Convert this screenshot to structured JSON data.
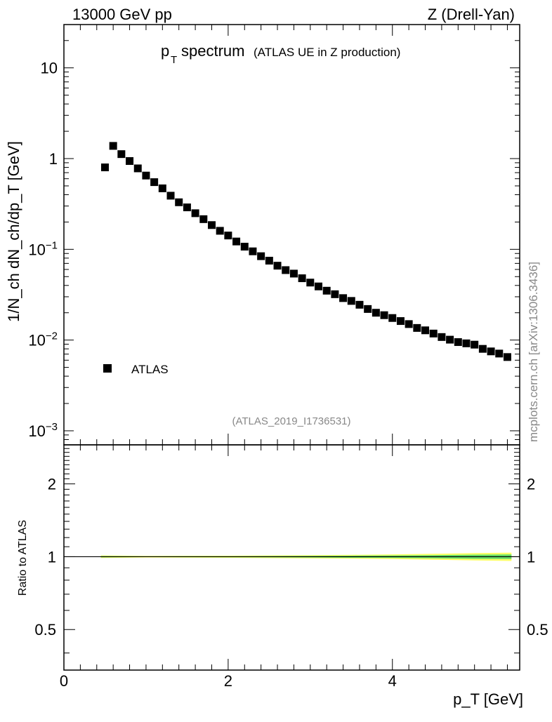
{
  "header": {
    "energy": "13000 GeV pp",
    "process": "Z (Drell-Yan)"
  },
  "title": {
    "main_p": "p",
    "main_sub": "T",
    "main_rest": "spectrum",
    "sub": "(ATLAS UE in Z production)"
  },
  "ylabel_top": "1/N_ch dN_ch/dp_T [GeV]",
  "ylabel_bottom": "Ratio to ATLAS",
  "xlabel": "p_T [GeV]",
  "side_text": "mcplots.cern.ch [arXiv:1306.3436]",
  "analysis_id": "(ATLAS_2019_I1736531)",
  "legend": {
    "label": "ATLAS"
  },
  "colors": {
    "data": "#000000",
    "band_outer": "#ffff66",
    "band_inner": "#66dd66"
  },
  "chart_data": [
    {
      "type": "scatter",
      "panel": "main",
      "series": [
        {
          "name": "ATLAS",
          "x": [
            0.5,
            0.6,
            0.7,
            0.8,
            0.9,
            1.0,
            1.1,
            1.2,
            1.3,
            1.4,
            1.5,
            1.6,
            1.7,
            1.8,
            1.9,
            2.0,
            2.1,
            2.2,
            2.3,
            2.4,
            2.5,
            2.6,
            2.7,
            2.8,
            2.9,
            3.0,
            3.1,
            3.2,
            3.3,
            3.4,
            3.5,
            3.6,
            3.7,
            3.8,
            3.9,
            4.0,
            4.1,
            4.2,
            4.3,
            4.4,
            4.5,
            4.6,
            4.7,
            4.8,
            4.9,
            5.0,
            5.1,
            5.2,
            5.3,
            5.4
          ],
          "values": [
            0.8,
            1.38,
            1.12,
            0.94,
            0.78,
            0.65,
            0.55,
            0.47,
            0.39,
            0.33,
            0.29,
            0.25,
            0.215,
            0.185,
            0.16,
            0.142,
            0.122,
            0.107,
            0.095,
            0.084,
            0.075,
            0.066,
            0.059,
            0.054,
            0.048,
            0.043,
            0.039,
            0.035,
            0.032,
            0.029,
            0.027,
            0.0245,
            0.022,
            0.02,
            0.0188,
            0.0175,
            0.0162,
            0.015,
            0.0136,
            0.0128,
            0.0118,
            0.0108,
            0.0101,
            0.0095,
            0.0092,
            0.0089,
            0.008,
            0.0075,
            0.0071,
            0.0065
          ]
        }
      ],
      "xlim": [
        0,
        5.55
      ],
      "ylim": [
        0.0007,
        30
      ],
      "yscale": "log",
      "x_ticks": [
        "0",
        "2",
        "4"
      ],
      "y_ticks": [
        "10^-3",
        "10^-2",
        "10^-1",
        "1",
        "10"
      ],
      "legend_position": "left, lower middle"
    },
    {
      "type": "area",
      "panel": "ratio",
      "x": [
        0.45,
        1.0,
        2.0,
        3.0,
        3.5,
        4.0,
        4.5,
        5.0,
        5.45
      ],
      "band_outer_low": [
        0.988,
        0.992,
        0.99,
        0.985,
        0.982,
        0.978,
        0.972,
        0.965,
        0.96
      ],
      "band_outer_high": [
        1.012,
        1.008,
        1.01,
        1.015,
        1.018,
        1.022,
        1.028,
        1.035,
        1.04
      ],
      "band_inner_low": [
        0.994,
        0.996,
        0.995,
        0.992,
        0.99,
        0.988,
        0.985,
        0.98,
        0.978
      ],
      "band_inner_high": [
        1.006,
        1.004,
        1.005,
        1.008,
        1.01,
        1.012,
        1.015,
        1.02,
        1.022
      ],
      "reference": 1,
      "xlim": [
        0,
        5.55
      ],
      "ylim": [
        0.34,
        2.9
      ],
      "yscale": "log",
      "y_ticks": [
        "0.5",
        "1",
        "2"
      ]
    }
  ]
}
